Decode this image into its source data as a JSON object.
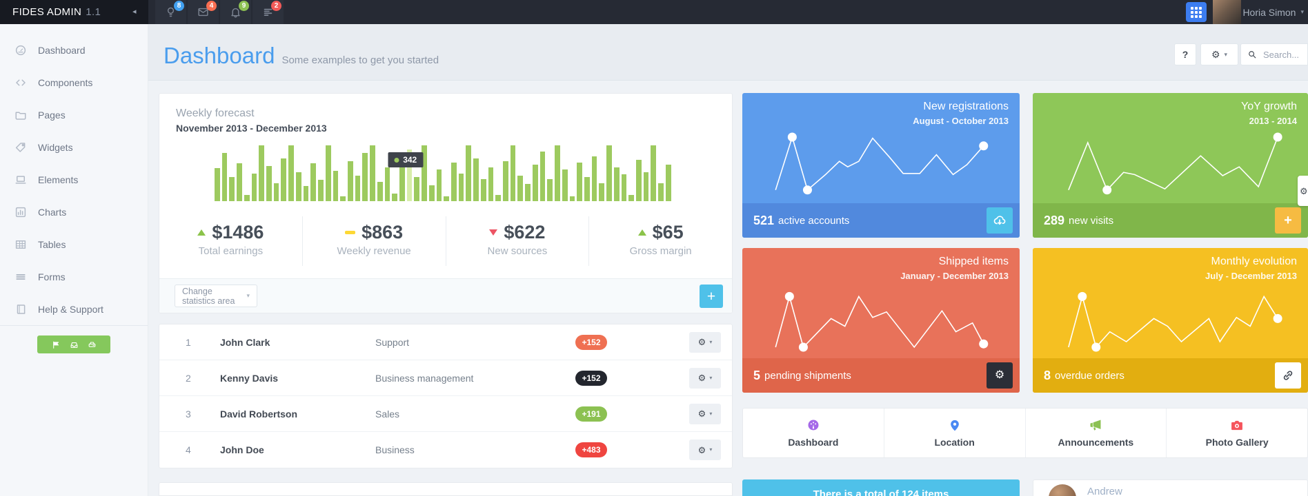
{
  "topbar": {
    "logo": "FIDES ADMIN",
    "version": "1.1",
    "user_name": "Horia Simon",
    "notification_icons": [
      {
        "icon": "bulb-icon",
        "badge": "8",
        "badge_color": "#41a0f0"
      },
      {
        "icon": "mail-icon",
        "badge": "4",
        "badge_color": "#fa6e51"
      },
      {
        "icon": "bell-icon",
        "badge": "9",
        "badge_color": "#8dc153"
      },
      {
        "icon": "tasks-icon",
        "badge": "2",
        "badge_color": "#f25a58"
      }
    ],
    "grid_button_color": "#3c7df0"
  },
  "sidebar": {
    "items": [
      {
        "icon": "dashboard-icon",
        "label": "Dashboard"
      },
      {
        "icon": "code-icon",
        "label": "Components"
      },
      {
        "icon": "folder-icon",
        "label": "Pages"
      },
      {
        "icon": "tag-icon",
        "label": "Widgets"
      },
      {
        "icon": "laptop-icon",
        "label": "Elements"
      },
      {
        "icon": "charts-icon",
        "label": "Charts"
      },
      {
        "icon": "table-icon",
        "label": "Tables"
      },
      {
        "icon": "forms-icon",
        "label": "Forms"
      },
      {
        "icon": "book-icon",
        "label": "Help & Support"
      }
    ],
    "quick_buttons": {
      "color": "#85c85c",
      "icons": [
        "flag-icon",
        "inbox-icon",
        "drive-icon"
      ]
    }
  },
  "header": {
    "title": "Dashboard",
    "subtitle": "Some examples to get you started",
    "help_label": "?",
    "search_placeholder": "Search..."
  },
  "forecast": {
    "title": "Weekly forecast",
    "subtitle": "November 2013 - December 2013",
    "footer_select_label": "Change statistics area",
    "chart_data": {
      "type": "bar",
      "title": "Weekly forecast",
      "period": "November 2013 - December 2013",
      "bar_color": "#9dca5f",
      "highlight_color": "#d8edaa",
      "highlight_index": 26,
      "highlight_value": 342,
      "ylim": [
        0,
        100
      ],
      "values_pct": [
        55,
        80,
        40,
        62,
        10,
        45,
        92,
        58,
        30,
        70,
        92,
        48,
        25,
        62,
        35,
        92,
        50,
        8,
        66,
        42,
        80,
        92,
        32,
        56,
        12,
        70,
        85,
        40,
        92,
        26,
        52,
        8,
        64,
        46,
        92,
        70,
        36,
        56,
        10,
        66,
        92,
        42,
        28,
        60,
        82,
        36,
        92,
        52,
        8,
        64,
        40,
        74,
        30,
        92,
        56,
        44,
        10,
        68,
        48,
        92,
        30,
        60
      ]
    },
    "stats": [
      {
        "trend": "up",
        "value": "$1486",
        "label": "Total earnings"
      },
      {
        "trend": "flat",
        "value": "$863",
        "label": "Weekly revenue"
      },
      {
        "trend": "down",
        "value": "$622",
        "label": "New sources"
      },
      {
        "trend": "up",
        "value": "$65",
        "label": "Gross margin"
      }
    ]
  },
  "team_table": {
    "rows": [
      {
        "num": "1",
        "name": "John Clark",
        "dept": "Support",
        "badge": "+152",
        "badge_color": "#ef7052"
      },
      {
        "num": "2",
        "name": "Kenny Davis",
        "dept": "Business management",
        "badge": "+152",
        "badge_color": "#23262e"
      },
      {
        "num": "3",
        "name": "David Robertson",
        "dept": "Sales",
        "badge": "+191",
        "badge_color": "#8cc152"
      },
      {
        "num": "4",
        "name": "John Doe",
        "dept": "Business",
        "badge": "+483",
        "badge_color": "#ef4540"
      }
    ]
  },
  "tiles": [
    {
      "title": "New registrations",
      "subtitle": "August - October 2013",
      "stat_value": "521",
      "stat_label": "active accounts",
      "bg": "#5d9cec",
      "footer_bg": "#5189dd",
      "button_icon": "cloud-download-icon",
      "button_bg": "#4fc1e9",
      "button_fg": "#ffffff",
      "chart_data": {
        "type": "line",
        "points_pct": [
          [
            12,
            88
          ],
          [
            18,
            40
          ],
          [
            23.5,
            88
          ],
          [
            30,
            74
          ],
          [
            35,
            62
          ],
          [
            38,
            67
          ],
          [
            42,
            62
          ],
          [
            47,
            41
          ],
          [
            53,
            58
          ],
          [
            58,
            73
          ],
          [
            64,
            73
          ],
          [
            70,
            56
          ],
          [
            76,
            74
          ],
          [
            81,
            65
          ],
          [
            87,
            48
          ]
        ],
        "dot_indices": [
          1,
          2,
          14
        ]
      }
    },
    {
      "title": "YoY growth",
      "subtitle": "2013 - 2014",
      "stat_value": "289",
      "stat_label": "new visits",
      "bg": "#8ec758",
      "footer_bg": "#80b64a",
      "button_icon": "plus-icon",
      "button_bg": "#f6bb42",
      "button_fg": "#ffffff",
      "chart_data": {
        "type": "line",
        "points_pct": [
          [
            13,
            88
          ],
          [
            20,
            45
          ],
          [
            27,
            88
          ],
          [
            33,
            72
          ],
          [
            37,
            74
          ],
          [
            48,
            87
          ],
          [
            61,
            57
          ],
          [
            69,
            75
          ],
          [
            75,
            67
          ],
          [
            82,
            85
          ],
          [
            89,
            40
          ]
        ],
        "dot_indices": [
          2,
          10
        ]
      }
    },
    {
      "title": "Shipped items",
      "subtitle": "January - December 2013",
      "stat_value": "5",
      "stat_label": "pending shipments",
      "bg": "#e8725a",
      "footer_bg": "#df654a",
      "button_icon": "gear-icon",
      "button_bg": "#2b2e37",
      "button_fg": "#ffffff",
      "chart_data": {
        "type": "line",
        "points_pct": [
          [
            12,
            90
          ],
          [
            17,
            44
          ],
          [
            22,
            90
          ],
          [
            32,
            64
          ],
          [
            37,
            71
          ],
          [
            42,
            44
          ],
          [
            47,
            63
          ],
          [
            52,
            58
          ],
          [
            62,
            90
          ],
          [
            72,
            57
          ],
          [
            77,
            76
          ],
          [
            83,
            68
          ],
          [
            87,
            87
          ]
        ],
        "dot_indices": [
          1,
          2,
          12
        ]
      }
    },
    {
      "title": "Monthly evolution",
      "subtitle": "July - December 2013",
      "stat_value": "8",
      "stat_label": "overdue orders",
      "bg": "#f5c022",
      "footer_bg": "#e2ae10",
      "button_icon": "link-icon",
      "button_bg": "#ffffff",
      "button_fg": "#434a54",
      "chart_data": {
        "type": "line",
        "points_pct": [
          [
            13,
            90
          ],
          [
            18,
            44
          ],
          [
            23,
            90
          ],
          [
            28,
            76
          ],
          [
            34,
            85
          ],
          [
            44,
            64
          ],
          [
            49,
            71
          ],
          [
            54,
            85
          ],
          [
            64,
            64
          ],
          [
            68,
            85
          ],
          [
            74,
            63
          ],
          [
            79,
            71
          ],
          [
            84,
            44
          ],
          [
            89,
            64
          ]
        ],
        "dot_indices": [
          1,
          2,
          13
        ]
      }
    }
  ],
  "shortcuts": [
    {
      "label": "Dashboard",
      "icon": "gauge-icon",
      "color": "#a569e8"
    },
    {
      "label": "Location",
      "icon": "pin-icon",
      "color": "#4a89f3"
    },
    {
      "label": "Announcements",
      "icon": "megaphone-icon",
      "color": "#8cc152"
    },
    {
      "label": "Photo Gallery",
      "icon": "camera-icon",
      "color": "#f5545c"
    }
  ],
  "bottom_partials": {
    "info_bg": "#4fc1e9",
    "info_text": "There is a total of 124 items",
    "person_name": "Andrew"
  },
  "trend_colors": {
    "up": "#8bc34a",
    "flat": "#fdd835",
    "down": "#ed5565"
  }
}
